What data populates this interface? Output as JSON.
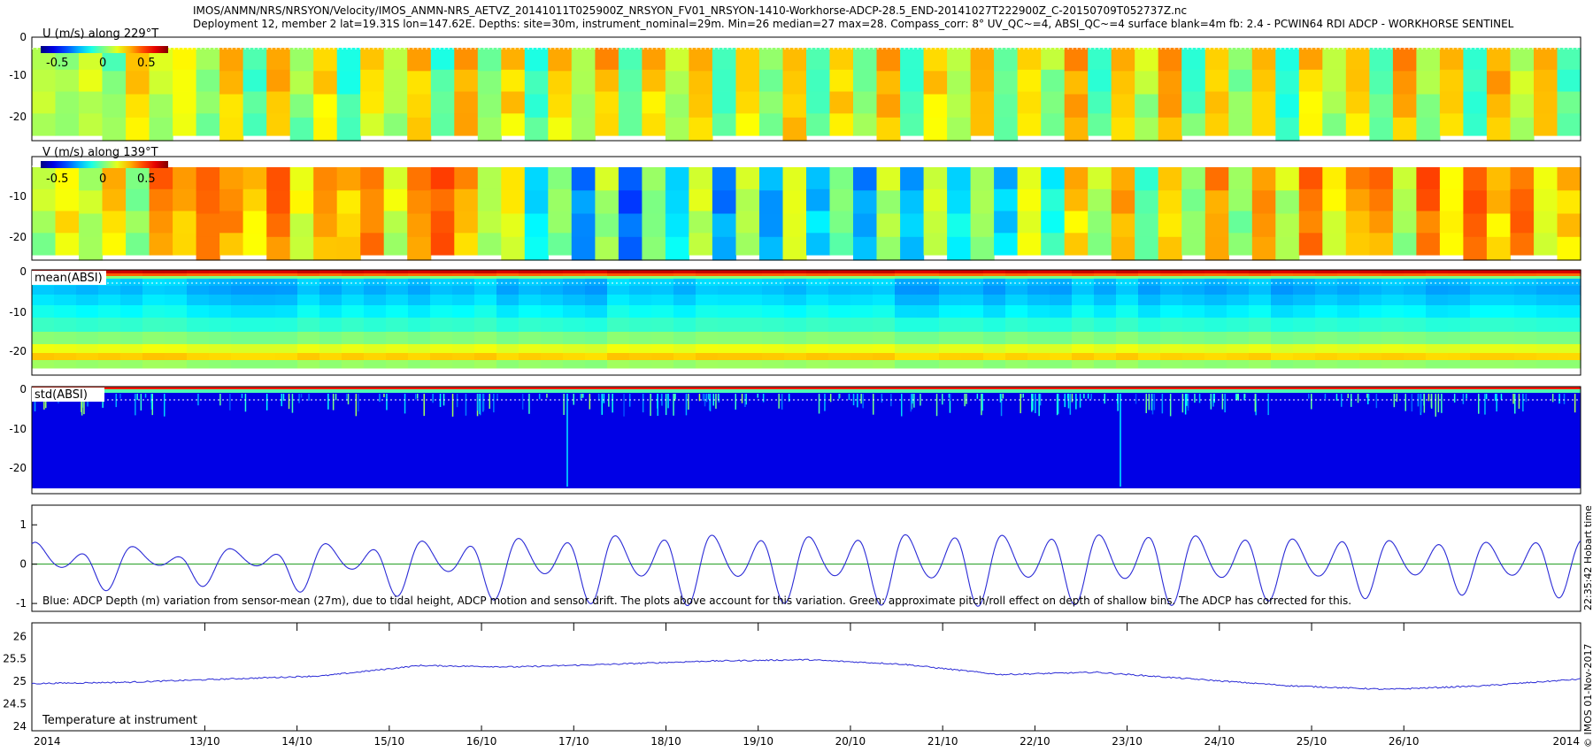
{
  "header": {
    "line1": "IMOS/ANMN/NRS/NRSYON/Velocity/IMOS_ANMN-NRS_AETVZ_20141011T025900Z_NRSYON_FV01_NRSYON-1410-Workhorse-ADCP-28.5_END-20141027T222900Z_C-20150709T052737Z.nc",
    "line2": "Deployment 12, member 2 lat=19.31S lon=147.62E. Depths: site=30m, instrument_nominal=29m. Min=26 median=27 max=28. Compass_corr: 8° UV_QC~=4, ABSI_QC~=4 surface blank=4m fb: 2.4 - PCWIN64 RDI ADCP - WORKHORSE SENTINEL"
  },
  "panels": {
    "u": {
      "label": "U (m/s) along 229°T",
      "colorbar_ticks": [
        "-0.5",
        "0",
        "0.5"
      ],
      "y_ticks": [
        "0",
        "-10",
        "-20"
      ]
    },
    "v": {
      "label": "V (m/s) along 139°T",
      "colorbar_ticks": [
        "-0.5",
        "0",
        "0.5"
      ],
      "y_ticks": [
        "0",
        "-10",
        "-20"
      ]
    },
    "mean": {
      "label": "mean(ABSI)",
      "y_ticks": [
        "0",
        "-10",
        "-20"
      ]
    },
    "std": {
      "label": "std(ABSI)",
      "y_ticks": [
        "0",
        "-10",
        "-20"
      ]
    },
    "depth": {
      "y_ticks": [
        "1",
        "0",
        "-1"
      ],
      "note": "Blue: ADCP Depth (m) variation from sensor-mean (27m), due to tidal height, ADCP motion and sensor drift. The plots above account for this variation. Green: approximate pitch/roll effect on depth of shallow bins. The ADCP has corrected for this."
    },
    "temp": {
      "y_ticks": [
        "26",
        "25.5",
        "25",
        "24.5",
        "24"
      ],
      "label": "Temperature at instrument"
    }
  },
  "x_axis": {
    "left_label": "2014",
    "right_label": "2014",
    "tick_labels": [
      "13/10",
      "14/10",
      "15/10",
      "16/10",
      "17/10",
      "18/10",
      "19/10",
      "20/10",
      "21/10",
      "22/10",
      "23/10",
      "24/10",
      "25/10",
      "26/10"
    ]
  },
  "side_text": {
    "hobart": "22:35:42 Hobart time",
    "credit": "© IMOS 01-Nov-2017"
  },
  "colors": {
    "depth_line": "#2b2bd6",
    "pitch_line": "#1a9a1a",
    "temp_line": "#2b2bd6",
    "colormap": "jet"
  },
  "chart_data": [
    {
      "type": "heatmap",
      "title": "U (m/s) along 229°T",
      "colorbar": {
        "min": -0.8,
        "max": 0.8,
        "ticks": [
          -0.5,
          0,
          0.5
        ]
      },
      "ylim": [
        -26,
        0
      ],
      "y_ticks": [
        0,
        -10,
        -20
      ],
      "x_range_days": [
        "11/10/2014 03:00",
        "27/10/2014 22:00"
      ],
      "column_bands": [
        0.1,
        0.05,
        0.15,
        -0.05,
        0.3,
        0.1,
        0.25,
        0.0,
        0.3,
        -0.1,
        0.35,
        0.05,
        0.3,
        -0.15,
        0.25,
        0.1,
        0.3,
        -0.1,
        0.35,
        0.0,
        0.3,
        -0.15,
        0.3,
        0.05,
        0.35,
        -0.1,
        0.3,
        0.1,
        0.35,
        -0.15,
        0.3,
        0.05,
        0.35,
        -0.1,
        0.3,
        0.0,
        0.35,
        -0.15,
        0.3,
        0.1,
        0.35,
        -0.1,
        0.3,
        0.05,
        0.35,
        -0.15,
        0.3,
        0.1,
        0.35,
        -0.1,
        0.3,
        0.0,
        0.35,
        -0.15,
        0.3,
        0.1,
        0.3,
        -0.1,
        0.35,
        0.05,
        0.3,
        -0.15,
        0.35,
        0.1,
        0.3,
        -0.1
      ]
    },
    {
      "type": "heatmap",
      "title": "V (m/s) along 139°T",
      "colorbar": {
        "min": -0.8,
        "max": 0.8,
        "ticks": [
          -0.5,
          0,
          0.5
        ]
      },
      "ylim": [
        -26,
        0
      ],
      "y_ticks": [
        0,
        -10,
        -20
      ],
      "column_bands": [
        0.1,
        0.25,
        0.1,
        0.3,
        0.05,
        0.45,
        0.35,
        0.5,
        0.4,
        0.3,
        0.45,
        0.2,
        0.4,
        0.3,
        0.45,
        0.15,
        0.4,
        0.5,
        0.35,
        0.1,
        0.2,
        -0.3,
        0.05,
        -0.4,
        0.1,
        -0.5,
        0.05,
        -0.3,
        0.15,
        -0.4,
        0.1,
        -0.35,
        0.2,
        -0.3,
        0.05,
        -0.4,
        0.1,
        -0.35,
        0.15,
        -0.25,
        0.05,
        -0.3,
        0.2,
        -0.2,
        0.3,
        0.1,
        0.35,
        -0.1,
        0.3,
        0.05,
        0.4,
        0.0,
        0.35,
        0.1,
        0.45,
        0.2,
        0.35,
        0.4,
        0.1,
        0.45,
        0.25,
        0.5,
        0.3,
        0.45,
        0.2,
        0.3
      ]
    },
    {
      "type": "heatmap",
      "title": "mean(ABSI)",
      "ylim": [
        -26,
        0
      ],
      "y_ticks": [
        0,
        -10,
        -20
      ]
    },
    {
      "type": "heatmap",
      "title": "std(ABSI)",
      "ylim": [
        -26,
        0
      ],
      "y_ticks": [
        0,
        -10,
        -20
      ]
    },
    {
      "type": "line",
      "series": [
        {
          "name": "Blue: ADCP Depth (m) variation",
          "amplitudes": [
            0.6,
            0.5,
            0.45,
            0.4,
            0.35,
            0.45,
            0.55,
            0.6,
            0.65,
            0.7,
            0.75,
            0.8,
            0.85,
            0.9,
            0.9,
            0.9,
            0.85,
            0.85,
            0.9,
            0.95,
            0.95,
            0.9,
            0.9,
            0.95,
            0.95,
            0.9,
            0.85,
            0.8,
            0.8,
            0.75,
            0.7,
            0.7,
            0.75,
            0.8
          ]
        },
        {
          "name": "Green: approximate pitch/roll effect",
          "constant": 0
        }
      ],
      "ylim": [
        -1.2,
        1.5
      ],
      "y_ticks": [
        1,
        0,
        -1
      ],
      "semidiurnal_cycles": 32
    },
    {
      "type": "line",
      "title": "Temperature at instrument",
      "ylim": [
        23.9,
        26.3
      ],
      "y_ticks": [
        26,
        25.5,
        25,
        24.5,
        24
      ],
      "series": [
        {
          "name": "Temperature at instrument",
          "x_days": [
            0,
            1,
            2,
            3,
            4,
            5,
            6,
            7,
            8,
            9,
            10,
            11,
            12,
            13,
            14,
            15,
            16
          ],
          "values": [
            24.95,
            24.98,
            25.05,
            25.12,
            25.35,
            25.32,
            25.38,
            25.45,
            25.48,
            25.38,
            25.15,
            25.2,
            25.05,
            24.9,
            24.82,
            24.9,
            25.05
          ]
        }
      ]
    }
  ]
}
